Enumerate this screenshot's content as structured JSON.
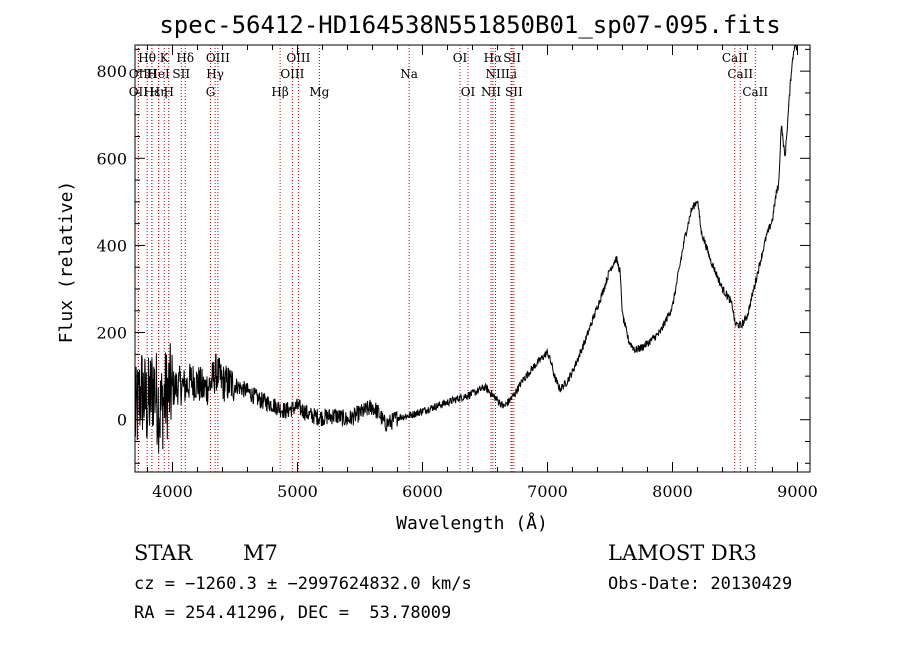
{
  "chart_data": {
    "type": "line",
    "title": "spec-56412-HD164538N551850B01_sp07-095.fits",
    "xlabel": "Wavelength (Å)",
    "ylabel": "Flux (relative)",
    "xlim": [
      3700,
      9100
    ],
    "ylim": [
      -120,
      860
    ],
    "xticks": [
      4000,
      5000,
      6000,
      7000,
      8000,
      9000
    ],
    "yticks": [
      0,
      200,
      400,
      600,
      800
    ],
    "series": [
      {
        "name": "flux",
        "x": [
          3700,
          3750,
          3800,
          3850,
          3900,
          3950,
          4000,
          4050,
          4100,
          4150,
          4200,
          4250,
          4300,
          4350,
          4400,
          4500,
          4600,
          4700,
          4800,
          4900,
          5000,
          5100,
          5200,
          5300,
          5400,
          5500,
          5600,
          5650,
          5700,
          5750,
          5800,
          5900,
          6000,
          6100,
          6200,
          6300,
          6400,
          6500,
          6550,
          6600,
          6650,
          6700,
          6750,
          6800,
          6900,
          6950,
          7000,
          7030,
          7060,
          7100,
          7150,
          7200,
          7300,
          7400,
          7450,
          7500,
          7550,
          7580,
          7600,
          7650,
          7700,
          7750,
          7800,
          7900,
          8000,
          8050,
          8100,
          8150,
          8200,
          8230,
          8250,
          8300,
          8400,
          8450,
          8480,
          8500,
          8550,
          8600,
          8650,
          8700,
          8750,
          8800,
          8830,
          8850,
          8870,
          8900,
          8930,
          8950,
          8980,
          9000
        ],
        "y": [
          0,
          70,
          30,
          80,
          20,
          60,
          70,
          80,
          75,
          90,
          85,
          70,
          80,
          110,
          85,
          80,
          65,
          45,
          35,
          20,
          30,
          10,
          5,
          10,
          0,
          15,
          30,
          15,
          -10,
          -5,
          5,
          10,
          20,
          30,
          40,
          50,
          60,
          75,
          60,
          45,
          30,
          45,
          65,
          90,
          125,
          140,
          155,
          130,
          95,
          70,
          85,
          110,
          180,
          260,
          300,
          345,
          370,
          340,
          240,
          180,
          160,
          165,
          175,
          200,
          260,
          340,
          420,
          480,
          505,
          430,
          415,
          370,
          300,
          280,
          260,
          220,
          215,
          240,
          300,
          360,
          420,
          460,
          520,
          540,
          680,
          600,
          720,
          800,
          870,
          840
        ]
      }
    ],
    "lines_top": [
      {
        "label": "Hθ",
        "wl": 3797
      },
      {
        "label": "K",
        "wl": 3934
      },
      {
        "label": "Hδ",
        "wl": 4102
      },
      {
        "label": "OIII",
        "wl": 4363
      },
      {
        "label": "OIII",
        "wl": 5007
      },
      {
        "label": "OI",
        "wl": 6300
      },
      {
        "label": "Hα",
        "wl": 6563
      },
      {
        "label": "SII",
        "wl": 6717
      },
      {
        "label": "CaII",
        "wl": 8498
      }
    ],
    "lines_mid": [
      {
        "label": "OII",
        "wl": 3727
      },
      {
        "label": "H",
        "wl": 3835
      },
      {
        "label": "HeI",
        "wl": 3889
      },
      {
        "label": "SII",
        "wl": 4070
      },
      {
        "label": "Hγ",
        "wl": 4341
      },
      {
        "label": "OIII",
        "wl": 4959
      },
      {
        "label": "Na",
        "wl": 5893
      },
      {
        "label": "NII",
        "wl": 6584
      },
      {
        "label": "Li",
        "wl": 6708
      },
      {
        "label": "CaII",
        "wl": 8542
      }
    ],
    "lines_bot": [
      {
        "label": "OII",
        "wl": 3727
      },
      {
        "label": "Hε",
        "wl": 3835
      },
      {
        "label": "Hη",
        "wl": 3889
      },
      {
        "label": "H",
        "wl": 3970
      },
      {
        "label": "G",
        "wl": 4304
      },
      {
        "label": "Hβ",
        "wl": 4861
      },
      {
        "label": "Mg",
        "wl": 5175
      },
      {
        "label": "OI",
        "wl": 6364
      },
      {
        "label": "NII",
        "wl": 6548
      },
      {
        "label": "SII",
        "wl": 6731
      },
      {
        "label": "CaII",
        "wl": 8662
      }
    ]
  },
  "info": {
    "object_class": "STAR",
    "subclass": "M7",
    "survey": "LAMOST DR3",
    "cz": "cz = −1260.3 ± −2997624832.0 km/s",
    "obs_date": "Obs-Date: 20130429",
    "coords": "RA = 254.41296, DEC =  53.78009"
  }
}
